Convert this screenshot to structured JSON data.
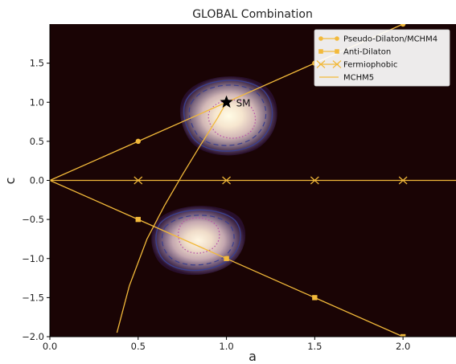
{
  "chart_data": {
    "type": "line",
    "title": "GLOBAL Combination",
    "xlabel": "a",
    "ylabel": "c",
    "xlim": [
      0.0,
      2.3
    ],
    "ylim": [
      -2.0,
      2.0
    ],
    "xticks": [
      "0.0",
      "0.5",
      "1.0",
      "1.5",
      "2.0"
    ],
    "yticks": [
      "−2.0",
      "−1.5",
      "−1.0",
      "−0.5",
      "0.0",
      "0.5",
      "1.0",
      "1.5"
    ],
    "xtick_values": [
      0,
      0.5,
      1.0,
      1.5,
      2.0
    ],
    "ytick_values": [
      -2.0,
      -1.5,
      -1.0,
      -0.5,
      0.0,
      0.5,
      1.0,
      1.5
    ],
    "background_color": "#1a0405",
    "line_color": "#f2b93a",
    "grid": false,
    "legend_position": "top-right",
    "series": [
      {
        "name": "Pseudo-Dilaton/MCHM4",
        "marker": "circle",
        "x": [
          0,
          0.5,
          1.0,
          1.5,
          2.0
        ],
        "y": [
          0,
          0.5,
          1.0,
          1.5,
          2.0
        ]
      },
      {
        "name": "Anti-Dilaton",
        "marker": "square",
        "x": [
          0,
          0.5,
          1.0,
          1.5,
          2.0
        ],
        "y": [
          0,
          -0.5,
          -1.0,
          -1.5,
          -2.0
        ]
      },
      {
        "name": "Fermiophobic",
        "marker": "x",
        "x": [
          0,
          0.5,
          1.0,
          1.5,
          2.0,
          2.3
        ],
        "y": [
          0,
          0,
          0,
          0,
          0,
          0
        ]
      },
      {
        "name": "MCHM5",
        "marker": "none",
        "x": [
          0.38,
          0.45,
          0.55,
          0.65,
          0.75,
          0.85,
          0.95,
          1.0
        ],
        "y": [
          -1.95,
          -1.35,
          -0.75,
          -0.32,
          0.07,
          0.44,
          0.8,
          1.0
        ]
      }
    ],
    "regions": [
      {
        "center": [
          1.05,
          0.72
        ]
      },
      {
        "center": [
          0.85,
          -0.66
        ]
      }
    ],
    "annotations": [
      {
        "text": "SM",
        "x": 1.0,
        "y": 1.0,
        "marker": "star"
      }
    ]
  }
}
